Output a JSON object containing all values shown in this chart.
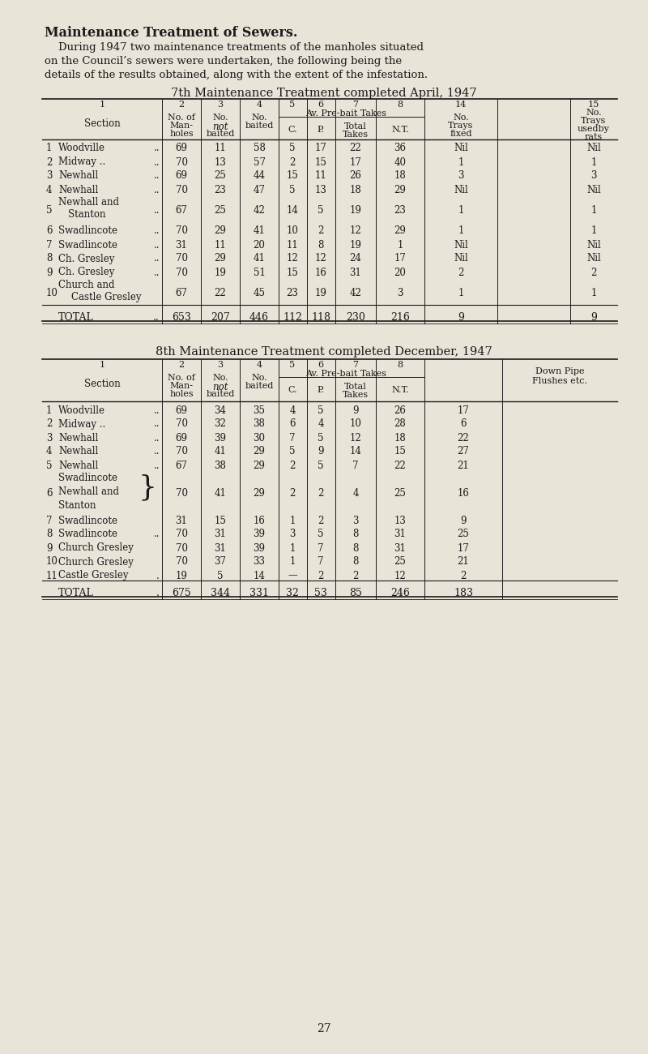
{
  "bg_color": "#e8e4d8",
  "text_color": "#1a1a1a",
  "title": "Maintenance Treatment of Sewers.",
  "intro_lines": [
    "    During 1947 two maintenance treatments of the manholes situated",
    "on the Council’s sewers were undertaken, the following being the",
    "details of the results obtained, along with the extent of the infestation."
  ],
  "table1_title": "7th Maintenance Treatment completed April, 1947",
  "table2_title": "8th Maintenance Treatment completed December, 1947",
  "page_number": "27",
  "t1_rows": [
    {
      "num": "1",
      "name": "Woodville",
      "name2": "",
      "dots": "..",
      "vals": [
        "69",
        "11",
        "58",
        "5",
        "17",
        "22",
        "36",
        "Nil",
        "Nil"
      ],
      "ml": false
    },
    {
      "num": "2",
      "name": "Midway ..",
      "name2": "",
      "dots": "..",
      "vals": [
        "70",
        "13",
        "57",
        "2",
        "15",
        "17",
        "40",
        "1",
        "1"
      ],
      "ml": false
    },
    {
      "num": "3",
      "name": "Newhall",
      "name2": "",
      "dots": "..",
      "vals": [
        "69",
        "25",
        "44",
        "15",
        "11",
        "26",
        "18",
        "3",
        "3"
      ],
      "ml": false
    },
    {
      "num": "4",
      "name": "Newhall",
      "name2": "",
      "dots": "..",
      "vals": [
        "70",
        "23",
        "47",
        "5",
        "13",
        "18",
        "29",
        "Nil",
        "Nil"
      ],
      "ml": false
    },
    {
      "num": "5",
      "name": "Newhall and",
      "name2": "Stanton",
      "dots": "..",
      "vals": [
        "67",
        "25",
        "42",
        "14",
        "5",
        "19",
        "23",
        "1",
        "1"
      ],
      "ml": true
    },
    {
      "num": "6",
      "name": "Swadlincote",
      "name2": "",
      "dots": "..",
      "vals": [
        "70",
        "29",
        "41",
        "10",
        "2",
        "12",
        "29",
        "1",
        "1"
      ],
      "ml": false
    },
    {
      "num": "7",
      "name": "Swadlincote",
      "name2": "",
      "dots": "..",
      "vals": [
        "31",
        "11",
        "20",
        "11",
        "8",
        "19",
        "1",
        "Nil",
        "Nil"
      ],
      "ml": false
    },
    {
      "num": "8",
      "name": "Ch. Gresley",
      "name2": "",
      "dots": "..",
      "vals": [
        "70",
        "29",
        "41",
        "12",
        "12",
        "24",
        "17",
        "Nil",
        "Nil"
      ],
      "ml": false
    },
    {
      "num": "9",
      "name": "Ch. Gresley",
      "name2": "",
      "dots": "..",
      "vals": [
        "70",
        "19",
        "51",
        "15",
        "16",
        "31",
        "20",
        "2",
        "2"
      ],
      "ml": false
    },
    {
      "num": "10",
      "name": "Church and",
      "name2": "Castle Gresley",
      "dots": "",
      "vals": [
        "67",
        "22",
        "45",
        "23",
        "19",
        "42",
        "3",
        "1",
        "1"
      ],
      "ml": true
    }
  ],
  "t1_total": [
    "653",
    "207",
    "446",
    "112",
    "118",
    "230",
    "216",
    "9",
    "9"
  ],
  "t2_rows": [
    {
      "num": "1",
      "name": "Woodville",
      "name2": "",
      "name3": "",
      "dots": "..",
      "vals": [
        "69",
        "34",
        "35",
        "4",
        "5",
        "9",
        "26",
        "17"
      ],
      "ml": false,
      "triple": false
    },
    {
      "num": "2",
      "name": "Midway ..",
      "name2": "",
      "name3": "",
      "dots": "..",
      "vals": [
        "70",
        "32",
        "38",
        "6",
        "4",
        "10",
        "28",
        "6"
      ],
      "ml": false,
      "triple": false
    },
    {
      "num": "3",
      "name": "Newhall",
      "name2": "",
      "name3": "",
      "dots": "..",
      "vals": [
        "69",
        "39",
        "30",
        "7",
        "5",
        "12",
        "18",
        "22"
      ],
      "ml": false,
      "triple": false
    },
    {
      "num": "4",
      "name": "Newhall",
      "name2": "",
      "name3": "",
      "dots": "..",
      "vals": [
        "70",
        "41",
        "29",
        "5",
        "9",
        "14",
        "15",
        "27"
      ],
      "ml": false,
      "triple": false
    },
    {
      "num": "5",
      "name": "Newhall",
      "name2": "",
      "name3": "",
      "dots": "..",
      "vals": [
        "67",
        "38",
        "29",
        "2",
        "5",
        "7",
        "22",
        "21"
      ],
      "ml": false,
      "triple": false
    },
    {
      "num": "6",
      "name": "Swadlincote",
      "name2": "Newhall and",
      "name3": "Stanton",
      "dots": "",
      "vals": [
        "70",
        "41",
        "29",
        "2",
        "2",
        "4",
        "25",
        "16"
      ],
      "ml": true,
      "triple": true
    },
    {
      "num": "7",
      "name": "Swadlincote",
      "name2": "",
      "name3": "",
      "dots": "",
      "vals": [
        "31",
        "15",
        "16",
        "1",
        "2",
        "3",
        "13",
        "9"
      ],
      "ml": false,
      "triple": false
    },
    {
      "num": "8",
      "name": "Swadlincote",
      "name2": "",
      "name3": "",
      "dots": "..",
      "vals": [
        "70",
        "31",
        "39",
        "3",
        "5",
        "8",
        "31",
        "25"
      ],
      "ml": false,
      "triple": false
    },
    {
      "num": "9",
      "name": "Church Gresley",
      "name2": "",
      "name3": "",
      "dots": "",
      "vals": [
        "70",
        "31",
        "39",
        "1",
        "7",
        "8",
        "31",
        "17"
      ],
      "ml": false,
      "triple": false
    },
    {
      "num": "10",
      "name": "Church Gresley",
      "name2": "",
      "name3": "",
      "dots": "",
      "vals": [
        "70",
        "37",
        "33",
        "1",
        "7",
        "8",
        "25",
        "21"
      ],
      "ml": false,
      "triple": false
    },
    {
      "num": "11",
      "name": "Castle Gresley",
      "name2": "",
      "name3": "",
      "dots": ".",
      "vals": [
        "19",
        "5",
        "14",
        "—",
        "2",
        "2",
        "12",
        "2"
      ],
      "ml": false,
      "triple": false
    }
  ],
  "t2_total": [
    "675",
    "344",
    "331",
    "32",
    "53",
    "85",
    "246",
    "183"
  ]
}
